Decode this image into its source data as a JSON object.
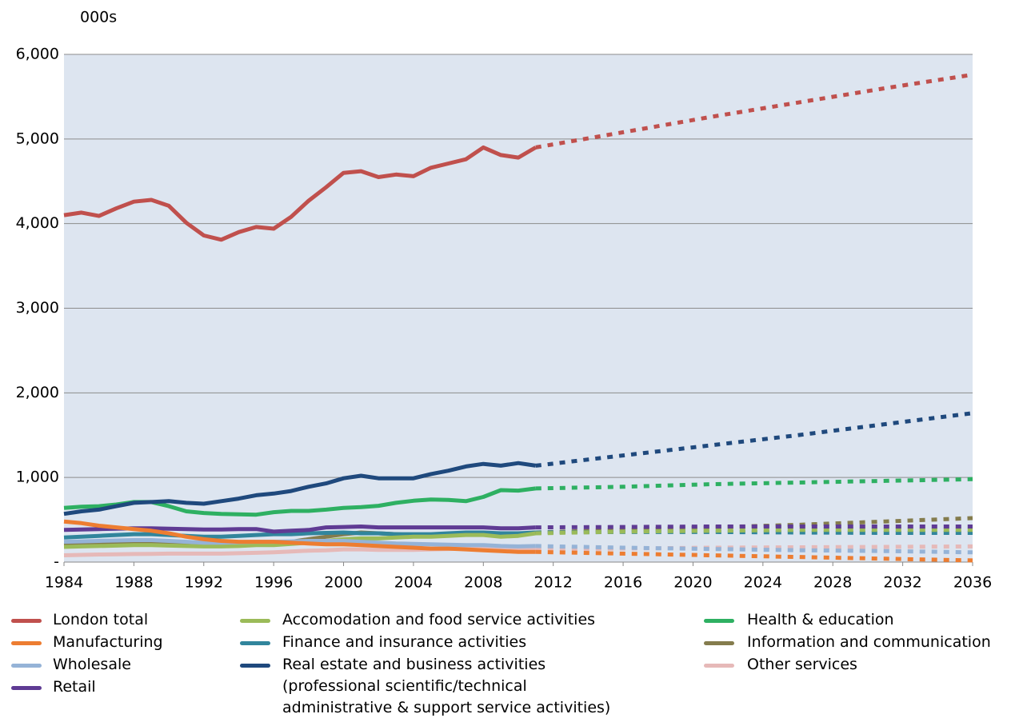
{
  "chart_data": {
    "type": "line",
    "y_label": "000s",
    "x": [
      1984,
      1985,
      1986,
      1987,
      1988,
      1989,
      1990,
      1991,
      1992,
      1993,
      1994,
      1995,
      1996,
      1997,
      1998,
      1999,
      2000,
      2001,
      2002,
      2003,
      2004,
      2005,
      2006,
      2007,
      2008,
      2009,
      2010,
      2011,
      2016,
      2021,
      2026,
      2031,
      2036
    ],
    "projection_from": 2011,
    "xlim": [
      1984,
      2036
    ],
    "xticks": [
      1984,
      1988,
      1992,
      1996,
      2000,
      2004,
      2008,
      2012,
      2016,
      2020,
      2024,
      2028,
      2032,
      2036
    ],
    "ylim": [
      0,
      6000
    ],
    "yticks": [
      {
        "value": 0,
        "label": "-"
      },
      {
        "value": 1000,
        "label": "1,000"
      },
      {
        "value": 2000,
        "label": "2,000"
      },
      {
        "value": 3000,
        "label": "3,000"
      },
      {
        "value": 4000,
        "label": "4,000"
      },
      {
        "value": 5000,
        "label": "5,000"
      },
      {
        "value": 6000,
        "label": "6,000"
      }
    ],
    "grid": true,
    "series": [
      {
        "name": "London total",
        "color": "#c0504d",
        "values": [
          4100,
          4130,
          4090,
          4180,
          4260,
          4280,
          4210,
          4010,
          3860,
          3810,
          3900,
          3960,
          3940,
          4080,
          4270,
          4430,
          4600,
          4620,
          4550,
          4580,
          4560,
          4660,
          4710,
          4760,
          4900,
          4810,
          4780,
          4900,
          5080,
          5260,
          5430,
          5600,
          5760
        ]
      },
      {
        "name": "Manufacturing",
        "color": "#ed7d31",
        "values": [
          480,
          460,
          430,
          410,
          390,
          370,
          340,
          300,
          270,
          250,
          240,
          240,
          240,
          230,
          220,
          210,
          210,
          200,
          190,
          180,
          170,
          160,
          160,
          150,
          140,
          130,
          120,
          120,
          100,
          80,
          60,
          40,
          20
        ]
      },
      {
        "name": "Wholesale",
        "color": "#95b3d7",
        "values": [
          240,
          245,
          250,
          255,
          260,
          260,
          250,
          240,
          230,
          230,
          235,
          240,
          240,
          245,
          250,
          250,
          250,
          240,
          230,
          220,
          215,
          210,
          205,
          200,
          200,
          190,
          185,
          190,
          170,
          155,
          140,
          130,
          115
        ]
      },
      {
        "name": "Retail",
        "color": "#5f3b94",
        "values": [
          380,
          385,
          390,
          395,
          400,
          400,
          395,
          390,
          385,
          385,
          390,
          390,
          360,
          370,
          380,
          410,
          415,
          420,
          410,
          410,
          410,
          410,
          410,
          410,
          410,
          400,
          400,
          410,
          415,
          420,
          420,
          420,
          420
        ]
      },
      {
        "name": "Accomodation and food service activities",
        "color": "#9bbb59",
        "values": [
          180,
          185,
          190,
          195,
          200,
          200,
          195,
          190,
          185,
          185,
          190,
          200,
          200,
          215,
          230,
          250,
          270,
          280,
          280,
          290,
          300,
          300,
          310,
          320,
          320,
          300,
          310,
          340,
          360,
          370,
          380,
          380,
          380
        ]
      },
      {
        "name": "Finance and insurance activities",
        "color": "#31859c",
        "values": [
          290,
          300,
          310,
          320,
          330,
          330,
          320,
          310,
          300,
          300,
          310,
          320,
          330,
          330,
          340,
          345,
          350,
          340,
          340,
          330,
          330,
          330,
          340,
          350,
          350,
          340,
          340,
          350,
          355,
          355,
          350,
          345,
          345
        ]
      },
      {
        "name": "Real estate and business activities\n(professional scientific/technical\nadministrative & support service activities)",
        "color": "#1f497d",
        "values": [
          570,
          600,
          620,
          660,
          700,
          710,
          720,
          700,
          690,
          720,
          750,
          790,
          810,
          840,
          890,
          930,
          990,
          1020,
          990,
          990,
          990,
          1040,
          1080,
          1130,
          1160,
          1140,
          1170,
          1140,
          1260,
          1380,
          1500,
          1630,
          1760
        ]
      },
      {
        "name": "Health & education",
        "color": "#2eb062",
        "values": [
          640,
          655,
          660,
          680,
          710,
          710,
          660,
          600,
          580,
          570,
          565,
          560,
          590,
          605,
          605,
          620,
          640,
          650,
          665,
          700,
          725,
          740,
          735,
          720,
          770,
          850,
          845,
          870,
          890,
          920,
          940,
          960,
          980
        ]
      },
      {
        "name": "Information and communication",
        "color": "#847c4d",
        "values": [
          200,
          205,
          210,
          215,
          220,
          220,
          215,
          205,
          200,
          200,
          205,
          210,
          220,
          240,
          270,
          300,
          330,
          350,
          340,
          330,
          320,
          320,
          330,
          330,
          340,
          330,
          330,
          350,
          380,
          410,
          440,
          480,
          520
        ]
      },
      {
        "name": "Other services",
        "color": "#e6b9b8",
        "values": [
          80,
          85,
          90,
          92,
          95,
          97,
          100,
          100,
          100,
          100,
          105,
          110,
          115,
          125,
          135,
          140,
          150,
          150,
          145,
          145,
          145,
          150,
          155,
          160,
          160,
          150,
          150,
          150,
          160,
          170,
          175,
          180,
          185
        ]
      }
    ]
  }
}
